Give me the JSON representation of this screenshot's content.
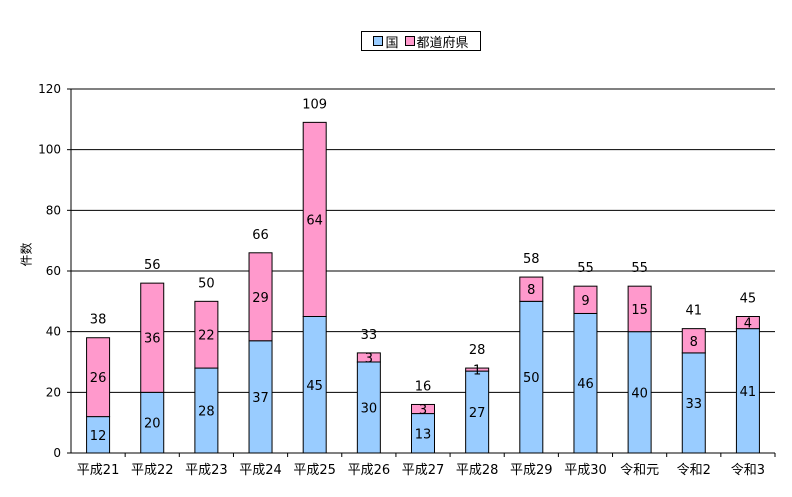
{
  "chart_data": {
    "type": "bar",
    "stacked": true,
    "categories": [
      "平成21",
      "平成22",
      "平成23",
      "平成24",
      "平成25",
      "平成26",
      "平成27",
      "平成28",
      "平成29",
      "平成30",
      "令和元",
      "令和2",
      "令和3"
    ],
    "series": [
      {
        "name": "国",
        "color": "#99ccff",
        "values": [
          12,
          20,
          28,
          37,
          45,
          30,
          13,
          27,
          50,
          46,
          40,
          33,
          41
        ]
      },
      {
        "name": "都道府県",
        "color": "#ff99cc",
        "values": [
          26,
          36,
          22,
          29,
          64,
          3,
          3,
          1,
          8,
          9,
          15,
          8,
          4
        ]
      }
    ],
    "totals": [
      38,
      56,
      50,
      66,
      109,
      33,
      16,
      28,
      58,
      55,
      55,
      41,
      45
    ],
    "ylabel": "件数",
    "ylim": [
      0,
      120
    ],
    "yticks": [
      0,
      20,
      40,
      60,
      80,
      100,
      120
    ],
    "grid": true,
    "legend_position": "top-center"
  }
}
